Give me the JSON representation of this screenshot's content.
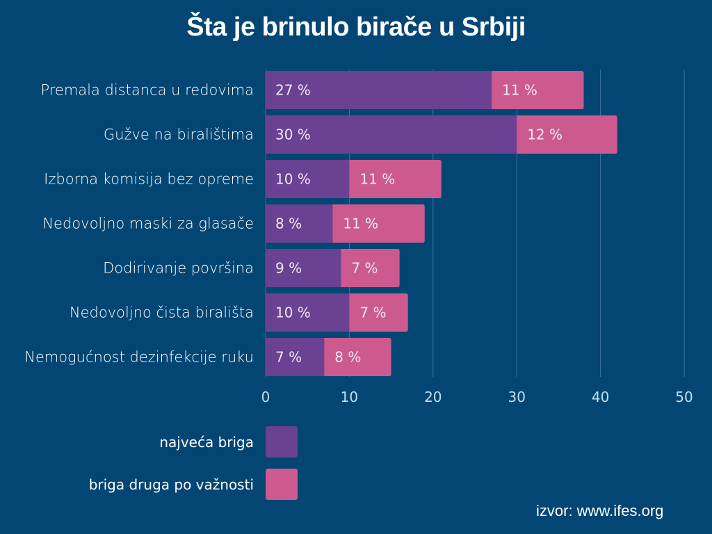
{
  "chart_data": {
    "type": "bar",
    "orientation": "horizontal",
    "stacked": true,
    "title": "Šta je brinulo birače u Srbiji",
    "categories": [
      "Premala distanca u redovima",
      "Gužve na biralištima",
      "Izborna komisija bez opreme",
      "Nedovoljno maski za glasače",
      "Dodirivanje površina",
      "Nedovoljno čista birališta",
      "Nemogućnost dezinfekcije ruku"
    ],
    "series": [
      {
        "name": "najveća briga",
        "color": "#6a4193",
        "values": [
          27,
          30,
          10,
          8,
          9,
          10,
          7
        ],
        "labels": [
          "27 %",
          "30 %",
          "10 %",
          "8 %",
          "9 %",
          "10 %",
          "7 %"
        ]
      },
      {
        "name": "briga druga po važnosti",
        "color": "#cc5a8e",
        "values": [
          11,
          12,
          11,
          11,
          7,
          7,
          8
        ],
        "labels": [
          "11 %",
          "12  %",
          "11 %",
          "11 %",
          "7 %",
          "7 %",
          "8 %"
        ]
      }
    ],
    "xlim": [
      0,
      50
    ],
    "xticks": [
      "0",
      "10",
      "20",
      "30",
      "40",
      "50"
    ],
    "grid": true,
    "legend_placement": "bottom-left",
    "background": "#034673",
    "source": "izvor: www.ifes.org"
  }
}
